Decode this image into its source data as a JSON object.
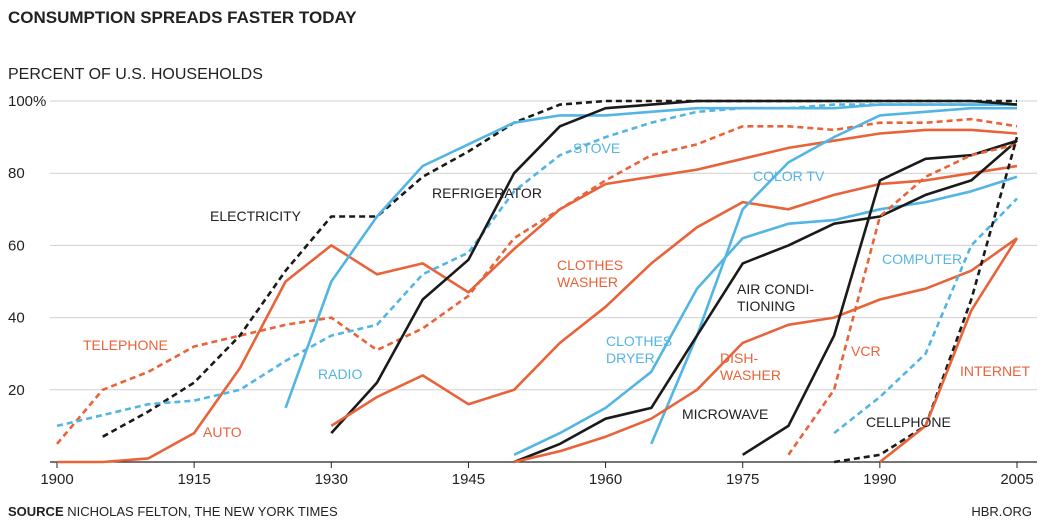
{
  "chart_data": {
    "type": "line",
    "title": "CONSUMPTION SPREADS FASTER TODAY",
    "subtitle": "PERCENT OF U.S. HOUSEHOLDS",
    "source_label": "SOURCE",
    "source": "NICHOLAS FELTON, THE NEW YORK TIMES",
    "credit": "HBR.ORG",
    "x": [
      1900,
      1905,
      1910,
      1915,
      1920,
      1925,
      1930,
      1935,
      1940,
      1945,
      1950,
      1955,
      1960,
      1965,
      1970,
      1975,
      1980,
      1985,
      1990,
      1995,
      2000,
      2005
    ],
    "xlim": [
      1900,
      2005
    ],
    "xticks": [
      1900,
      1915,
      1930,
      1945,
      1960,
      1975,
      1990,
      2005
    ],
    "ylim": [
      0,
      100
    ],
    "yticks": [
      20,
      40,
      60,
      80,
      {
        "value": 100,
        "label": "100%"
      }
    ],
    "grid": true,
    "series": [
      {
        "name": "TELEPHONE",
        "color": "#e8633a",
        "dash": true,
        "values": [
          5,
          20,
          25,
          32,
          35,
          38,
          40,
          31,
          37,
          46,
          62,
          70,
          78,
          85,
          88,
          93,
          93,
          92,
          94,
          94,
          95,
          93
        ]
      },
      {
        "name": "ELECTRICITY",
        "color": "#1a1a1a",
        "dash": true,
        "values": [
          null,
          7,
          14,
          22,
          35,
          53,
          68,
          68,
          79,
          86,
          94,
          99,
          100,
          100,
          100,
          100,
          100,
          100,
          100,
          100,
          100,
          100
        ]
      },
      {
        "name": "AUTO",
        "color": "#e8633a",
        "dash": false,
        "values": [
          0,
          0,
          1,
          8,
          26,
          50,
          60,
          52,
          55,
          47,
          59,
          70,
          77,
          79,
          81,
          84,
          87,
          89,
          91,
          92,
          92,
          91
        ]
      },
      {
        "name": "RADIO",
        "color": "#53b5e3",
        "dash": false,
        "values": [
          null,
          null,
          null,
          null,
          null,
          15,
          50,
          68,
          82,
          88,
          94,
          96,
          96,
          97,
          98,
          98,
          98,
          98,
          99,
          99,
          99,
          99
        ]
      },
      {
        "name": "STOVE",
        "color": "#53b5e3",
        "dash": true,
        "values": [
          10,
          13,
          16,
          17,
          20,
          28,
          35,
          38,
          52,
          58,
          75,
          85,
          90,
          94,
          97,
          98,
          98,
          99,
          99,
          99,
          99,
          99
        ]
      },
      {
        "name": "REFRIGERATOR",
        "color": "#1a1a1a",
        "dash": false,
        "values": [
          null,
          null,
          null,
          null,
          null,
          null,
          8,
          22,
          45,
          56,
          80,
          93,
          98,
          99,
          100,
          100,
          100,
          100,
          100,
          100,
          100,
          99
        ]
      },
      {
        "name": "CLOTHES\nWASHER",
        "color": "#e8633a",
        "dash": false,
        "values": [
          null,
          null,
          null,
          null,
          null,
          null,
          10,
          18,
          24,
          16,
          20,
          33,
          43,
          55,
          65,
          72,
          70,
          74,
          77,
          78,
          80,
          82
        ]
      },
      {
        "name": "CLOTHES\nDRYER",
        "color": "#53b5e3",
        "dash": false,
        "values": [
          null,
          null,
          null,
          null,
          null,
          null,
          null,
          null,
          null,
          null,
          2,
          8,
          15,
          25,
          48,
          62,
          66,
          67,
          70,
          72,
          75,
          79
        ]
      },
      {
        "name": "COLOR TV",
        "color": "#53b5e3",
        "dash": false,
        "values": [
          null,
          null,
          null,
          null,
          null,
          null,
          null,
          null,
          null,
          null,
          null,
          null,
          null,
          5,
          35,
          70,
          83,
          90,
          96,
          97,
          98,
          98
        ]
      },
      {
        "name": "AIR CONDI-\nTIONING",
        "color": "#1a1a1a",
        "dash": false,
        "values": [
          null,
          null,
          null,
          null,
          null,
          null,
          null,
          null,
          null,
          null,
          0,
          5,
          12,
          15,
          35,
          55,
          60,
          66,
          68,
          74,
          78,
          89
        ]
      },
      {
        "name": "DISH-\nWASHER",
        "color": "#e8633a",
        "dash": false,
        "values": [
          null,
          null,
          null,
          null,
          null,
          null,
          null,
          null,
          null,
          null,
          0,
          3,
          7,
          12,
          20,
          33,
          38,
          40,
          45,
          48,
          53,
          62
        ]
      },
      {
        "name": "MICROWAVE",
        "color": "#1a1a1a",
        "dash": false,
        "values": [
          null,
          null,
          null,
          null,
          null,
          null,
          null,
          null,
          null,
          null,
          null,
          null,
          null,
          null,
          null,
          2,
          10,
          35,
          78,
          84,
          85,
          89
        ]
      },
      {
        "name": "VCR",
        "color": "#e8633a",
        "dash": true,
        "values": [
          null,
          null,
          null,
          null,
          null,
          null,
          null,
          null,
          null,
          null,
          null,
          null,
          null,
          null,
          null,
          null,
          2,
          20,
          68,
          79,
          85,
          88
        ]
      },
      {
        "name": "COMPUTER",
        "color": "#53b5e3",
        "dash": true,
        "values": [
          null,
          null,
          null,
          null,
          null,
          null,
          null,
          null,
          null,
          null,
          null,
          null,
          null,
          null,
          null,
          null,
          null,
          8,
          18,
          30,
          60,
          73
        ]
      },
      {
        "name": "CELLPHONE",
        "color": "#1a1a1a",
        "dash": true,
        "values": [
          null,
          null,
          null,
          null,
          null,
          null,
          null,
          null,
          null,
          null,
          null,
          null,
          null,
          null,
          null,
          null,
          null,
          0,
          2,
          10,
          45,
          90
        ]
      },
      {
        "name": "INTERNET",
        "color": "#e8633a",
        "dash": false,
        "values": [
          null,
          null,
          null,
          null,
          null,
          null,
          null,
          null,
          null,
          null,
          null,
          null,
          null,
          null,
          null,
          null,
          null,
          null,
          0,
          10,
          42,
          62
        ]
      }
    ]
  }
}
